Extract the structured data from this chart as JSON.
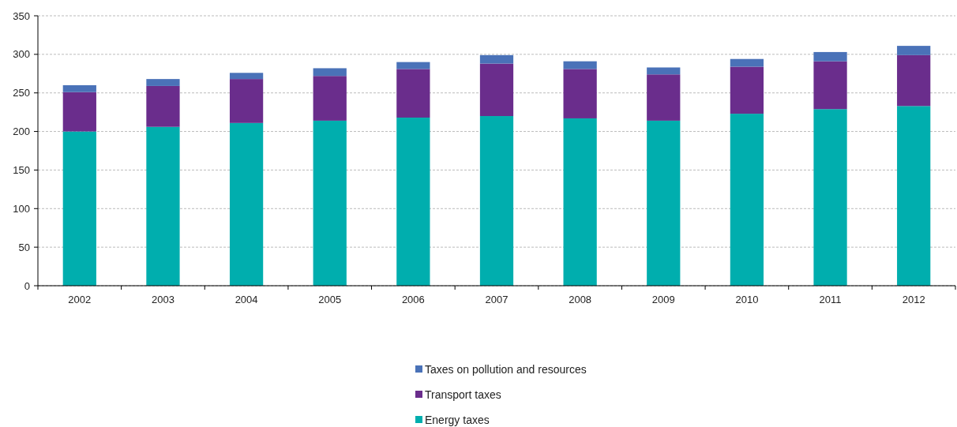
{
  "chart_data": {
    "type": "bar",
    "stacked": true,
    "categories": [
      "2002",
      "2003",
      "2004",
      "2005",
      "2006",
      "2007",
      "2008",
      "2009",
      "2010",
      "2011",
      "2012"
    ],
    "series": [
      {
        "name": "Energy taxes",
        "color": "#00aeae",
        "values": [
          200,
          206,
          211,
          214,
          218,
          220,
          217,
          214,
          223,
          229,
          233
        ]
      },
      {
        "name": "Transport taxes",
        "color": "#6a2d8c",
        "values": [
          51,
          53,
          57,
          58,
          63,
          68,
          64,
          60,
          61,
          62,
          66
        ]
      },
      {
        "name": "Taxes on pollution and resources",
        "color": "#4a72b8",
        "values": [
          9,
          9,
          8,
          10,
          9,
          11,
          10,
          9,
          10,
          12,
          12
        ]
      }
    ],
    "ylim": [
      0,
      350
    ],
    "yticks": [
      0,
      50,
      100,
      150,
      200,
      250,
      300,
      350
    ],
    "grid": "y",
    "legend": "bottom"
  }
}
